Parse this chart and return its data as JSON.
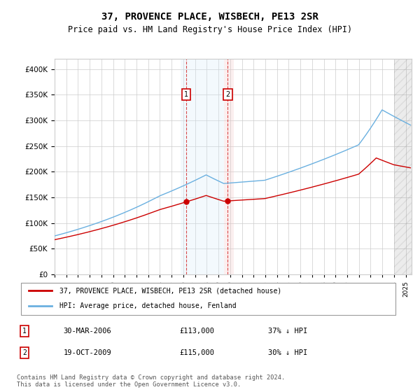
{
  "title": "37, PROVENCE PLACE, WISBECH, PE13 2SR",
  "subtitle": "Price paid vs. HM Land Registry's House Price Index (HPI)",
  "ylabel_ticks": [
    "£0",
    "£50K",
    "£100K",
    "£150K",
    "£200K",
    "£250K",
    "£300K",
    "£350K",
    "£400K"
  ],
  "ylim": [
    0,
    420000
  ],
  "xlim_start": 1995.0,
  "xlim_end": 2025.5,
  "sale1_date": 2006.24,
  "sale1_price": 113000,
  "sale1_label": "1",
  "sale2_date": 2009.8,
  "sale2_price": 115000,
  "sale2_label": "2",
  "hpi_color": "#6ab0e0",
  "price_color": "#cc0000",
  "sale_marker_color": "#cc0000",
  "shade1_color": "#d0e8f8",
  "shade2_color": "#f8d8d8",
  "legend_entries": [
    "37, PROVENCE PLACE, WISBECH, PE13 2SR (detached house)",
    "HPI: Average price, detached house, Fenland"
  ],
  "table_rows": [
    [
      "1",
      "30-MAR-2006",
      "£113,000",
      "37% ↓ HPI"
    ],
    [
      "2",
      "19-OCT-2009",
      "£115,000",
      "30% ↓ HPI"
    ]
  ],
  "footnote": "Contains HM Land Registry data © Crown copyright and database right 2024.\nThis data is licensed under the Open Government Licence v3.0.",
  "hatch_region_start": 2024.0,
  "hatch_region_end": 2025.5
}
